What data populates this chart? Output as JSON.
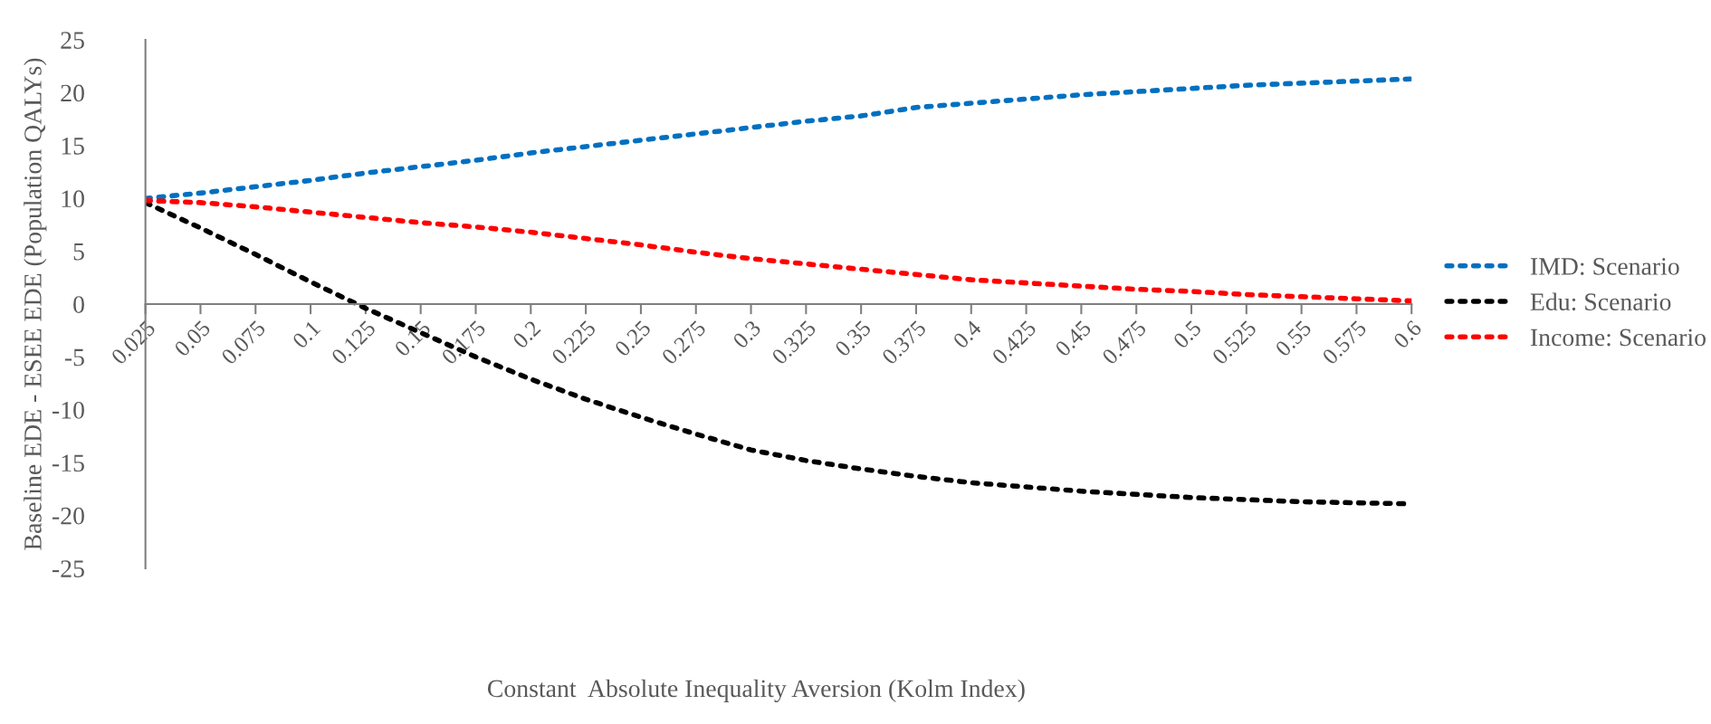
{
  "chart_data": {
    "type": "line",
    "xlabel": "Constant  Absolute Inequality Aversion (Kolm Index)",
    "ylabel": "Baseline EDE - ESEE EDE (Population QALYs)",
    "categories": [
      "0.025",
      "0.05",
      "0.075",
      "0.1",
      "0.125",
      "0.15",
      "0.175",
      "0.2",
      "0.225",
      "0.25",
      "0.275",
      "0.3",
      "0.325",
      "0.35",
      "0.375",
      "0.4",
      "0.425",
      "0.45",
      "0.475",
      "0.5",
      "0.525",
      "0.55",
      "0.575",
      "0.6"
    ],
    "series": [
      {
        "name": "IMD: Scenario",
        "color": "#0070c0",
        "values": [
          10.0,
          10.5,
          11.1,
          11.7,
          12.4,
          13.0,
          13.6,
          14.3,
          14.9,
          15.5,
          16.1,
          16.7,
          17.3,
          17.8,
          18.6,
          19.0,
          19.4,
          19.8,
          20.1,
          20.4,
          20.7,
          20.9,
          21.1,
          21.3
        ]
      },
      {
        "name": "Edu: Scenario",
        "color": "#000000",
        "values": [
          9.6,
          7.2,
          4.7,
          2.1,
          -0.4,
          -2.7,
          -5.0,
          -7.1,
          -9.0,
          -10.7,
          -12.3,
          -13.8,
          -14.8,
          -15.6,
          -16.3,
          -16.9,
          -17.3,
          -17.7,
          -18.0,
          -18.3,
          -18.5,
          -18.7,
          -18.8,
          -18.9
        ]
      },
      {
        "name": "Income: Scenario",
        "color": "#ff0000",
        "values": [
          9.8,
          9.6,
          9.2,
          8.7,
          8.2,
          7.7,
          7.3,
          6.8,
          6.2,
          5.6,
          4.9,
          4.3,
          3.8,
          3.3,
          2.8,
          2.3,
          2.0,
          1.7,
          1.4,
          1.2,
          0.9,
          0.7,
          0.5,
          0.3
        ]
      }
    ],
    "ylim": [
      -25,
      25
    ],
    "yticks": [
      -25,
      -20,
      -15,
      -10,
      -5,
      0,
      5,
      10,
      15,
      20,
      25
    ],
    "grid": false,
    "legend": "right",
    "marker": "none",
    "line_style": "dotted"
  }
}
